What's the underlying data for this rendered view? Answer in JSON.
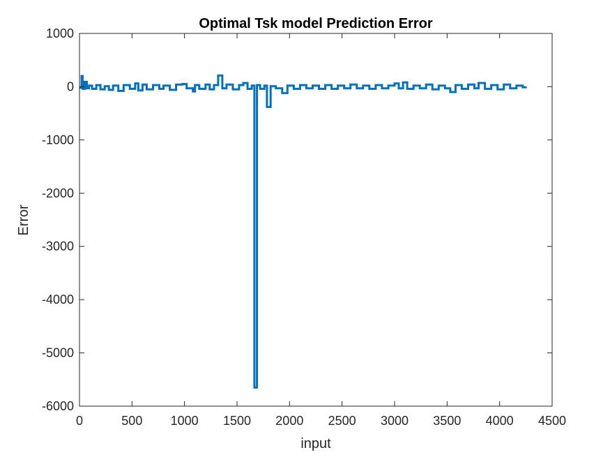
{
  "chart_data": {
    "type": "line",
    "title": "Optimal Tsk model Prediction Error",
    "xlabel": "input",
    "ylabel": "Error",
    "xlim": [
      0,
      4500
    ],
    "ylim": [
      -6000,
      1000
    ],
    "grid": false,
    "legend": "none",
    "x_ticks": [
      0,
      500,
      1000,
      1500,
      2000,
      2500,
      3000,
      3500,
      4000,
      4500
    ],
    "y_ticks": [
      1000,
      0,
      -1000,
      -2000,
      -3000,
      -4000,
      -5000,
      -6000
    ],
    "x_tick_labels": [
      "0",
      "500",
      "1000",
      "1500",
      "2000",
      "2500",
      "3000",
      "3500",
      "4000",
      "4500"
    ],
    "y_tick_labels": [
      "1000",
      "0",
      "-1000",
      "-2000",
      "-3000",
      "-4000",
      "-5000",
      "-6000"
    ],
    "series_color": "#0072BD",
    "series": [
      {
        "x": [
          0,
          20,
          30,
          50,
          70,
          90,
          120,
          160,
          200,
          240,
          280,
          320,
          370,
          420,
          480,
          530,
          560,
          600,
          640,
          700,
          760,
          800,
          860,
          920,
          980,
          1020,
          1080,
          1100,
          1140,
          1200,
          1240,
          1280,
          1320,
          1360,
          1400,
          1460,
          1520,
          1560,
          1600,
          1640,
          1665,
          1690,
          1720,
          1760,
          1785,
          1820,
          1870,
          1930,
          1980,
          2040,
          2100,
          2160,
          2220,
          2280,
          2340,
          2400,
          2460,
          2520,
          2580,
          2640,
          2700,
          2760,
          2820,
          2880,
          2940,
          3000,
          3040,
          3080,
          3120,
          3180,
          3240,
          3300,
          3360,
          3420,
          3480,
          3530,
          3580,
          3640,
          3700,
          3760,
          3800,
          3860,
          3920,
          3980,
          4040,
          4100,
          4160,
          4220,
          4250
        ],
        "y": [
          -20,
          200,
          -40,
          90,
          -30,
          20,
          -40,
          30,
          -50,
          10,
          -60,
          20,
          -80,
          30,
          -40,
          60,
          -70,
          40,
          -50,
          30,
          -40,
          20,
          -60,
          40,
          50,
          -30,
          -90,
          30,
          -40,
          40,
          -50,
          30,
          210,
          -30,
          40,
          -50,
          30,
          70,
          -40,
          20,
          -5650,
          30,
          -40,
          20,
          -380,
          10,
          -30,
          -120,
          20,
          -40,
          30,
          -30,
          20,
          -40,
          30,
          -40,
          20,
          -30,
          40,
          -30,
          20,
          -40,
          30,
          -30,
          20,
          60,
          -30,
          80,
          -40,
          20,
          -30,
          40,
          -50,
          20,
          -30,
          -100,
          30,
          -40,
          40,
          -30,
          70,
          -40,
          30,
          -50,
          40,
          -30,
          20,
          -10,
          0
        ]
      }
    ]
  }
}
